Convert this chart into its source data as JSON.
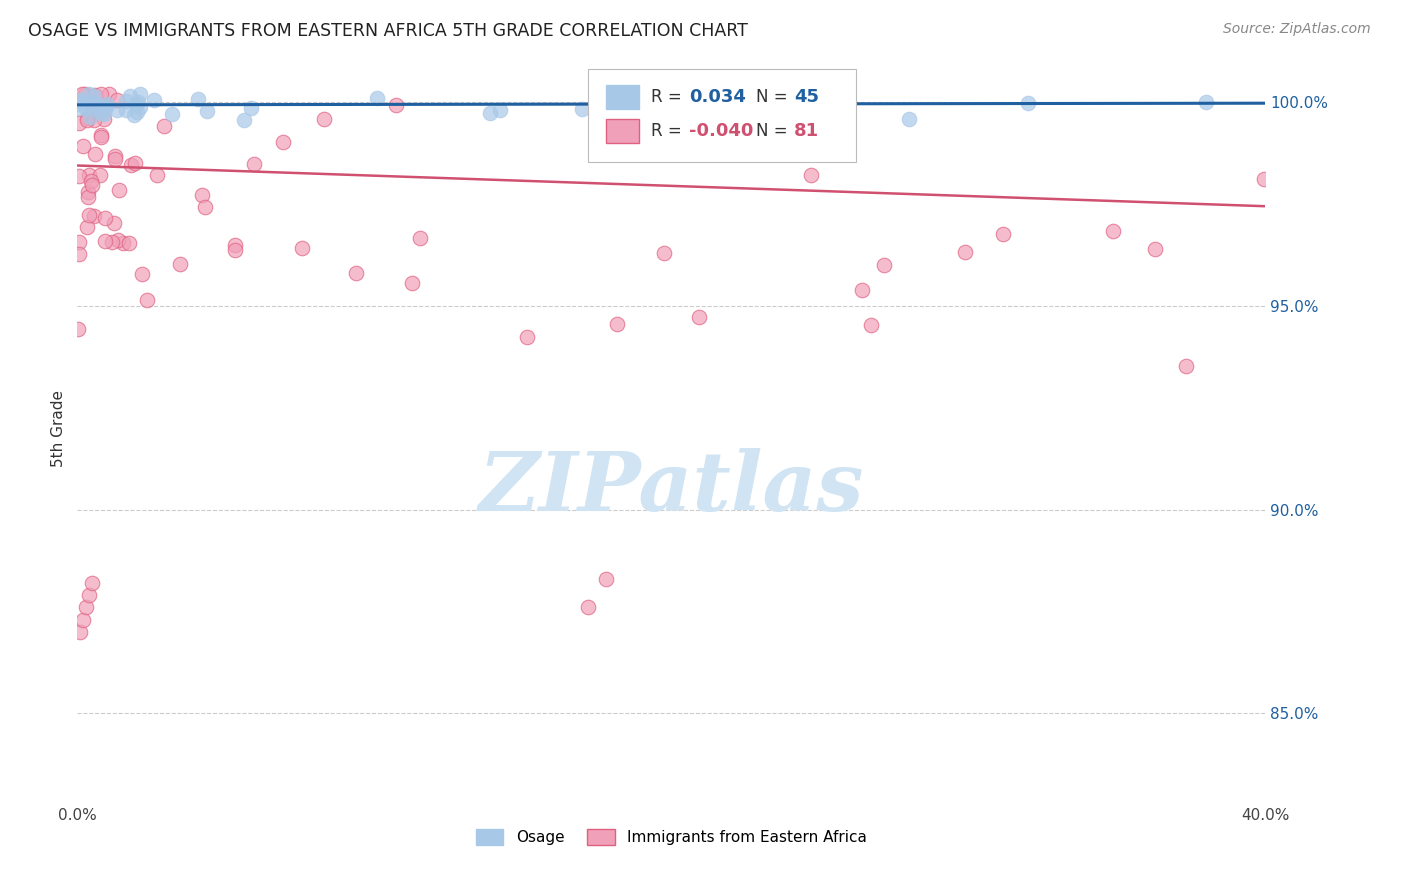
{
  "title": "OSAGE VS IMMIGRANTS FROM EASTERN AFRICA 5TH GRADE CORRELATION CHART",
  "source": "Source: ZipAtlas.com",
  "ylabel": "5th Grade",
  "xlim": [
    0.0,
    0.4
  ],
  "ylim": [
    0.828,
    1.012
  ],
  "yticks": [
    0.85,
    0.9,
    0.95,
    1.0
  ],
  "ytick_labels": [
    "85.0%",
    "90.0%",
    "95.0%",
    "100.0%"
  ],
  "xtick_positions": [
    0.0,
    0.1,
    0.2,
    0.3,
    0.4
  ],
  "xtick_labels_show": [
    "0.0%",
    "",
    "",
    "",
    "40.0%"
  ],
  "legend_blue_label": "Osage",
  "legend_pink_label": "Immigrants from Eastern Africa",
  "R_blue": 0.034,
  "N_blue": 45,
  "R_pink": -0.04,
  "N_pink": 81,
  "blue_dot_color": "#a8c8e8",
  "blue_line_color": "#2060a0",
  "pink_dot_color": "#f0a0b8",
  "pink_dot_edge_color": "#e06080",
  "pink_line_color": "#d05070",
  "watermark_color": "#d0e4f4",
  "background_color": "#ffffff",
  "blue_trend_y0": 0.9994,
  "blue_trend_y1": 0.9998,
  "pink_trend_y0": 0.9845,
  "pink_trend_y1": 0.9745
}
